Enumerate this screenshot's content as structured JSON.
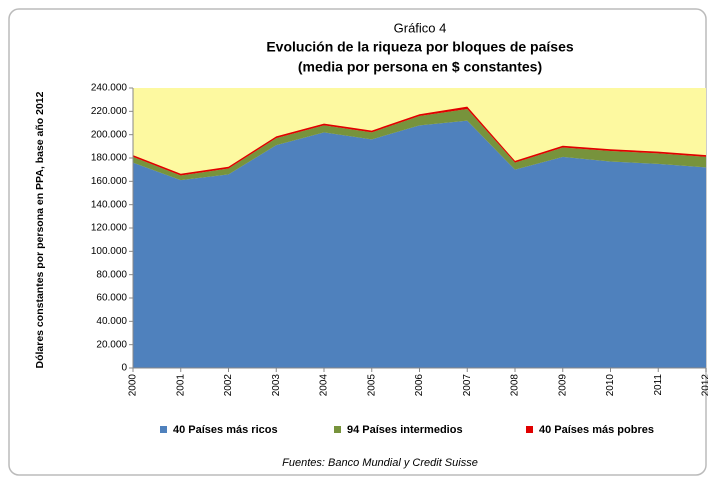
{
  "chart_data": {
    "type": "area",
    "stacked": true,
    "kicker": "Gráfico 4",
    "title": "Evolución de la riqueza  por bloques de países",
    "subtitle": "(media por persona en $ constantes)",
    "y_label": "Dólares constantes  por persona  en PPA, base año 2012",
    "source": "Fuentes: Banco Mundial y Credit Suisse",
    "categories": [
      "2000",
      "2001",
      "2002",
      "2003",
      "2004",
      "2005",
      "2006",
      "2007",
      "2008",
      "2009",
      "2010",
      "2011",
      "2012"
    ],
    "series": [
      {
        "name": "40 Países más ricos",
        "color": "#4f81bd",
        "values": [
          176000,
          161000,
          166000,
          191000,
          202000,
          196000,
          208000,
          212000,
          170000,
          181000,
          177000,
          175000,
          172000
        ]
      },
      {
        "name": "94  Países intermedios",
        "color": "#77933c",
        "values": [
          5000,
          4000,
          5000,
          6000,
          6000,
          6000,
          8000,
          10000,
          6000,
          8000,
          9000,
          9000,
          9000
        ]
      },
      {
        "name": "40 Países más pobres",
        "color": "#e00000",
        "values": [
          1500,
          1500,
          1500,
          1500,
          1500,
          1500,
          1500,
          2000,
          1500,
          1500,
          1500,
          1500,
          1500
        ]
      }
    ],
    "ylim": [
      0,
      240000
    ],
    "yticks": [
      0,
      {
        "value": 20000,
        "label": "20.000"
      },
      {
        "value": 40000,
        "label": "40.000"
      },
      {
        "value": 60000,
        "label": "60.000"
      },
      {
        "value": 80000,
        "label": "80.000"
      },
      {
        "value": 100000,
        "label": "100.000"
      },
      {
        "value": 120000,
        "label": "120.000"
      },
      {
        "value": 140000,
        "label": "140.000"
      },
      {
        "value": 160000,
        "label": "160.000"
      },
      {
        "value": 180000,
        "label": "180.000"
      },
      {
        "value": 200000,
        "label": "200.000"
      },
      {
        "value": 220000,
        "label": "220.000"
      },
      {
        "value": 240000,
        "label": "240.000"
      }
    ],
    "plot_background": "#fdf9a0",
    "grid": false,
    "legend": "bottom"
  }
}
